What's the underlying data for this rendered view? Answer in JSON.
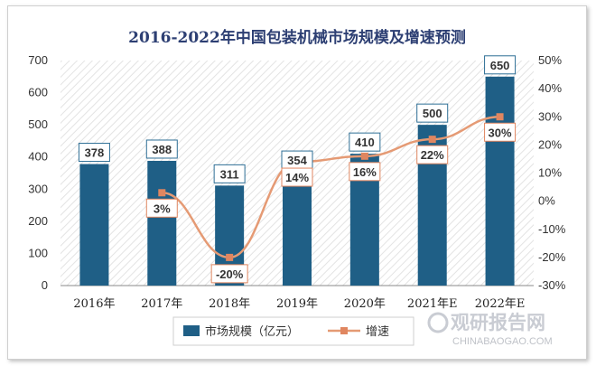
{
  "chart_data": {
    "type": "bar",
    "title": "2016-2022年中国包装机械市场规模及增速预测",
    "categories": [
      "2016年",
      "2017年",
      "2018年",
      "2019年",
      "2020年",
      "2021年E",
      "2022年E"
    ],
    "series": [
      {
        "name": "市场规模（亿元）",
        "type": "bar",
        "axis": "left",
        "values": [
          378,
          388,
          311,
          354,
          410,
          500,
          650
        ],
        "labels": [
          "378",
          "388",
          "311",
          "354",
          "410",
          "500",
          "650"
        ]
      },
      {
        "name": "增速",
        "type": "line",
        "axis": "right",
        "values": [
          null,
          3,
          -20,
          14,
          16,
          22,
          30
        ],
        "labels": [
          "",
          "3%",
          "-20%",
          "14%",
          "16%",
          "22%",
          "30%"
        ]
      }
    ],
    "ylim": [
      0,
      700
    ],
    "y_ticks": [
      "0",
      "100",
      "200",
      "300",
      "400",
      "500",
      "600",
      "700"
    ],
    "y2lim": [
      -30,
      50
    ],
    "y2_ticks": [
      "-30%",
      "-20%",
      "-10%",
      "0%",
      "10%",
      "20%",
      "30%",
      "40%",
      "50%"
    ],
    "grid": false,
    "legend_position": "bottom",
    "colors": {
      "bar": "#1f5f86",
      "line": "#e59a74",
      "marker": "#e08660",
      "label_border": "#2d6e95",
      "rate_label_border": "#e08660",
      "title": "#2d3f73"
    }
  },
  "watermark": {
    "cn": "观研报告网",
    "en": "CHINABAOGAO.COM"
  }
}
